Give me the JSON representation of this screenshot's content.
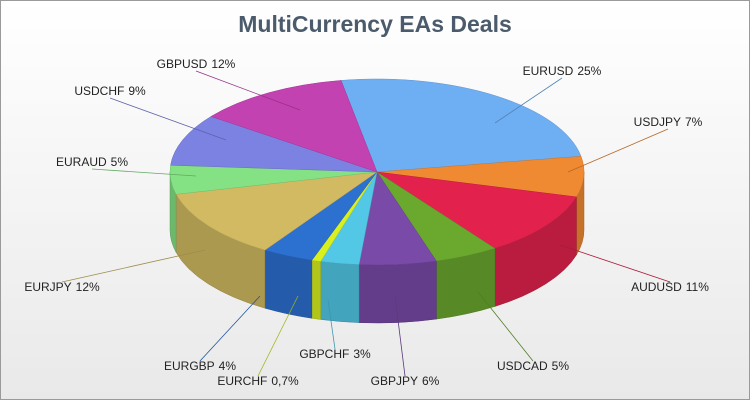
{
  "chart_data": {
    "type": "pie",
    "title": "MultiCurrency EAs Deals",
    "categories": [
      "EURUSD",
      "USDJPY",
      "AUDUSD",
      "USDCAD",
      "GBPJPY",
      "GBPCHF",
      "EURCHF",
      "EURGBP",
      "EURJPY",
      "EURAUD",
      "USDCHF",
      "GBPUSD"
    ],
    "values": [
      25,
      7,
      11,
      5,
      6,
      3,
      0.7,
      4,
      12,
      5,
      9,
      12
    ],
    "value_labels": [
      "25%",
      "7%",
      "11%",
      "5%",
      "6%",
      "3%",
      "0,7%",
      "4%",
      "12%",
      "5%",
      "9%",
      "12%"
    ],
    "colors": [
      "#6eaef2",
      "#f08a32",
      "#e2224c",
      "#6aa82e",
      "#7a4aa8",
      "#52c8e6",
      "#d8f020",
      "#2c70d0",
      "#d2ba62",
      "#84e284",
      "#7c82e2",
      "#c242b2"
    ]
  }
}
